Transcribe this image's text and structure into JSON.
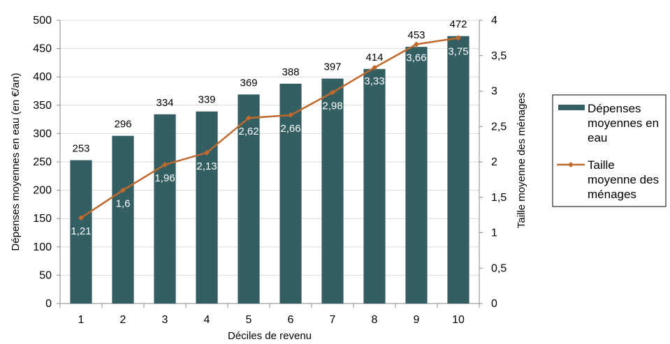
{
  "chart_data": {
    "type": "bar",
    "xlabel": "Déciles de revenu",
    "ylabel": "Dépenses moyennes en eau (en €/an)",
    "y2label": "Taille moyenne des ménages",
    "categories": [
      "1",
      "2",
      "3",
      "4",
      "5",
      "6",
      "7",
      "8",
      "9",
      "10"
    ],
    "ylim": [
      0,
      500
    ],
    "y_ticks": [
      "0",
      "50",
      "100",
      "150",
      "200",
      "250",
      "300",
      "350",
      "400",
      "450",
      "500"
    ],
    "y2lim": [
      0,
      4
    ],
    "y2_ticks": [
      "0",
      "0,5",
      "1",
      "1,5",
      "2",
      "2,5",
      "3",
      "3,5",
      "4"
    ],
    "grid": true,
    "legend_position": "right",
    "series": [
      {
        "name": "Dépenses moyennes en eau",
        "type": "bar",
        "axis": "left",
        "color": "#335e62",
        "values": [
          253,
          296,
          334,
          339,
          369,
          388,
          397,
          414,
          453,
          472
        ],
        "labels": [
          "253",
          "296",
          "334",
          "339",
          "369",
          "388",
          "397",
          "414",
          "453",
          "472"
        ]
      },
      {
        "name": "Taille moyenne des ménages",
        "type": "line",
        "axis": "right",
        "color": "#c0692c",
        "values": [
          1.21,
          1.6,
          1.96,
          2.13,
          2.62,
          2.66,
          2.98,
          3.33,
          3.66,
          3.75
        ],
        "labels": [
          "1,21",
          "1,6",
          "1,96",
          "2,13",
          "2,62",
          "2,66",
          "2,98",
          "3,33",
          "3,66",
          "3,75"
        ]
      }
    ],
    "legend": [
      [
        "Dépenses",
        "moyennes en",
        "eau"
      ],
      [
        "Taille",
        "moyenne des",
        "ménages"
      ]
    ]
  }
}
